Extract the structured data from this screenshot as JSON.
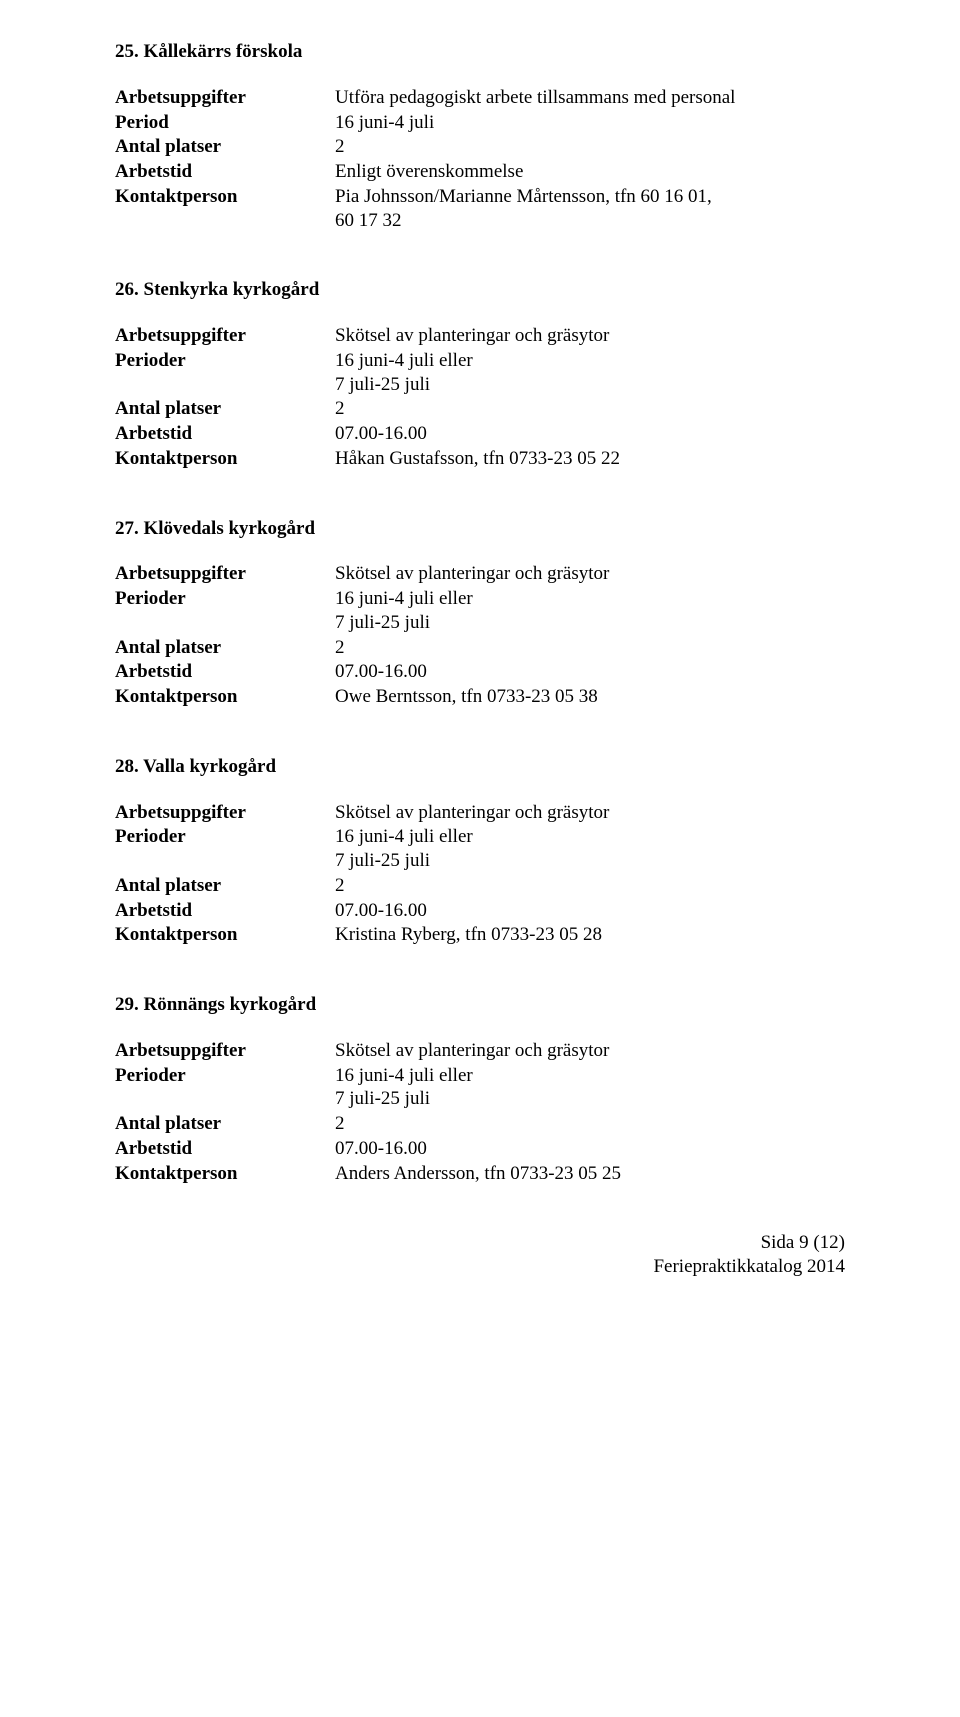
{
  "labels": {
    "arbetsuppgifter": "Arbetsuppgifter",
    "period": "Period",
    "perioder": "Perioder",
    "antal_platser": "Antal platser",
    "arbetstid": "Arbetstid",
    "kontaktperson": "Kontaktperson"
  },
  "sections": {
    "s25": {
      "title": "25. Kållekärrs förskola",
      "arbetsuppgifter": "Utföra pedagogiskt arbete tillsammans med personal",
      "period": "16 juni-4 juli",
      "antal_platser": "2",
      "arbetstid": "Enligt överenskommelse",
      "kontaktperson_l1": "Pia Johnsson/Marianne Mårtensson, tfn 60 16 01,",
      "kontaktperson_l2": "60 17 32"
    },
    "s26": {
      "title": "26. Stenkyrka kyrkogård",
      "arbetsuppgifter": "Skötsel av planteringar och gräsytor",
      "perioder_l1": "16 juni-4 juli eller",
      "perioder_l2": "7 juli-25 juli",
      "antal_platser": "2",
      "arbetstid": "07.00-16.00",
      "kontaktperson": "Håkan Gustafsson, tfn 0733-23 05 22"
    },
    "s27": {
      "title": "27. Klövedals kyrkogård",
      "arbetsuppgifter": "Skötsel av planteringar och gräsytor",
      "perioder_l1": "16 juni-4 juli eller",
      "perioder_l2": "7 juli-25 juli",
      "antal_platser": "2",
      "arbetstid": "07.00-16.00",
      "kontaktperson": "Owe Berntsson, tfn 0733-23 05 38"
    },
    "s28": {
      "title": "28. Valla kyrkogård",
      "arbetsuppgifter": "Skötsel av planteringar och gräsytor",
      "perioder_l1": "16 juni-4 juli eller",
      "perioder_l2": "7 juli-25 juli",
      "antal_platser": "2",
      "arbetstid": "07.00-16.00",
      "kontaktperson": "Kristina Ryberg, tfn 0733-23 05 28"
    },
    "s29": {
      "title": "29. Rönnängs kyrkogård",
      "arbetsuppgifter": "Skötsel av planteringar och gräsytor",
      "perioder_l1": "16 juni-4 juli eller",
      "perioder_l2": "7 juli-25 juli",
      "antal_platser": "2",
      "arbetstid": "07.00-16.00",
      "kontaktperson": "Anders Andersson, tfn 0733-23 05 25"
    }
  },
  "footer": {
    "line1": "Sida 9 (12)",
    "line2": "Feriepraktikkatalog 2014"
  }
}
